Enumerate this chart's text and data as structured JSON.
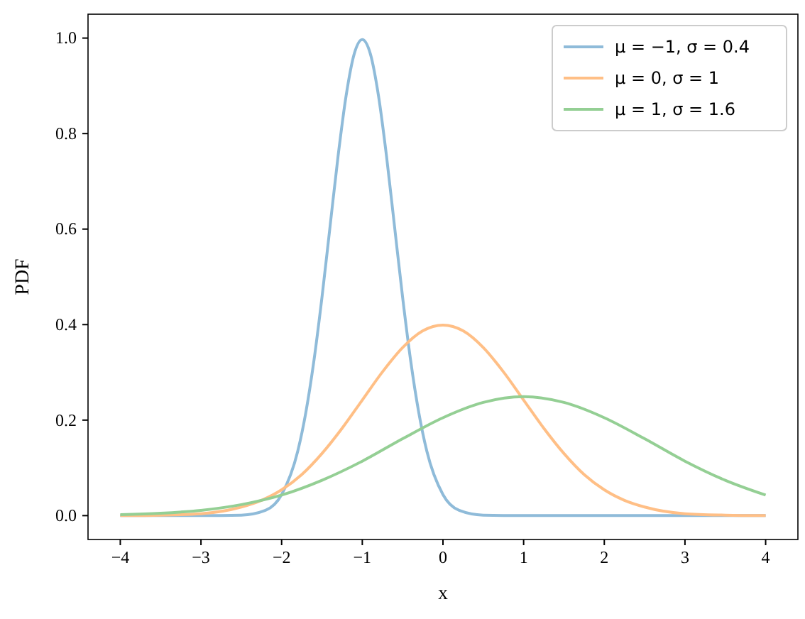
{
  "chart_data": {
    "type": "line",
    "xlabel": "x",
    "ylabel": "PDF",
    "xlim": [
      -4.4,
      4.4
    ],
    "ylim": [
      -0.05,
      1.05
    ],
    "xticks": [
      -4,
      -3,
      -2,
      -1,
      0,
      1,
      2,
      3,
      4
    ],
    "yticks": [
      {
        "value": 0,
        "label": "0.0"
      },
      {
        "value": 0.2,
        "label": "0.2"
      },
      {
        "value": 0.4,
        "label": "0.4"
      },
      {
        "value": 0.6,
        "label": "0.6"
      },
      {
        "value": 0.8,
        "label": "0.8"
      },
      {
        "value": 1,
        "label": "1.0"
      }
    ],
    "legend": "top right",
    "grid": false,
    "marker": "none",
    "line_style": "solid",
    "series": [
      {
        "name": "μ = −1, σ = 0.4",
        "color": "#8fbbd9",
        "x": [
          -4,
          -3,
          -2.5,
          -2.2,
          -2,
          -1.8,
          -1.7,
          -1.6,
          -1.5,
          -1.4,
          -1.3,
          -1.2,
          -1.1,
          -1,
          -0.9,
          -0.8,
          -0.7,
          -0.6,
          -0.5,
          -0.4,
          -0.3,
          -0.2,
          0,
          0.2,
          0.5,
          1,
          2,
          3,
          4
        ],
        "values": [
          0,
          0,
          0.001,
          0.011,
          0.044,
          0.135,
          0.216,
          0.324,
          0.457,
          0.605,
          0.753,
          0.88,
          0.967,
          0.997,
          0.967,
          0.88,
          0.753,
          0.605,
          0.457,
          0.324,
          0.216,
          0.135,
          0.044,
          0.011,
          0.001,
          0,
          0,
          0,
          0
        ]
      },
      {
        "name": "μ = 0, σ = 1",
        "color": "#ffbf86",
        "x": [
          -4,
          -3.5,
          -3,
          -2.5,
          -2.25,
          -2,
          -1.75,
          -1.5,
          -1.25,
          -1,
          -0.75,
          -0.5,
          -0.25,
          0,
          0.25,
          0.5,
          0.75,
          1,
          1.25,
          1.5,
          1.75,
          2,
          2.25,
          2.5,
          3,
          3.5,
          4
        ],
        "values": [
          0,
          0.001,
          0.004,
          0.018,
          0.032,
          0.054,
          0.086,
          0.13,
          0.183,
          0.242,
          0.301,
          0.352,
          0.387,
          0.399,
          0.387,
          0.352,
          0.301,
          0.242,
          0.183,
          0.13,
          0.086,
          0.054,
          0.032,
          0.018,
          0.004,
          0.001,
          0
        ]
      },
      {
        "name": "μ = 1, σ = 1.6",
        "color": "#94cf94",
        "x": [
          -4,
          -3.5,
          -3,
          -2.5,
          -2,
          -1.5,
          -1,
          -0.5,
          0,
          0.5,
          1,
          1.5,
          2,
          2.5,
          3,
          3.5,
          4
        ],
        "values": [
          0.002,
          0.005,
          0.011,
          0.023,
          0.043,
          0.074,
          0.114,
          0.161,
          0.205,
          0.237,
          0.249,
          0.237,
          0.205,
          0.161,
          0.114,
          0.074,
          0.043
        ]
      }
    ]
  }
}
